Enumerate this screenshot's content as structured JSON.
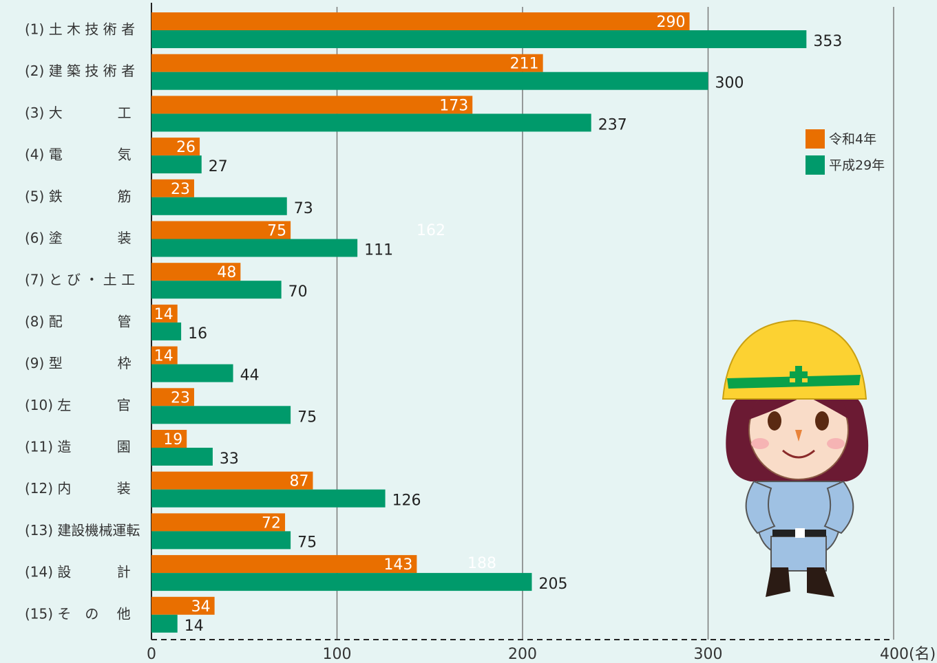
{
  "chart_data": {
    "type": "hbar",
    "categories": [
      "(1) 土 木 技 術 者",
      "(2) 建 築 技 術 者",
      "(3) 大　　　　工",
      "(4) 電　　　　気",
      "(5) 鉄　　　　筋",
      "(6) 塗　　　　装",
      "(7) と び ・ 土 工",
      "(8) 配　　　　管",
      "(9) 型　　　　枠",
      "(10) 左　　　 官",
      "(11) 造　　　 園",
      "(12) 内　　　 装",
      "(13) 建設機械運転",
      "(14) 設　　　 計",
      "(15) そ　の　 他"
    ],
    "series": [
      {
        "name": "令和4年",
        "color": "#e96f00",
        "values": [
          290,
          211,
          173,
          26,
          23,
          75,
          48,
          14,
          14,
          23,
          19,
          87,
          72,
          143,
          34
        ]
      },
      {
        "name": "平成29年",
        "color": "#009a6b",
        "values": [
          353,
          300,
          237,
          27,
          73,
          111,
          70,
          16,
          44,
          75,
          33,
          126,
          75,
          205,
          14
        ]
      }
    ],
    "xlim": [
      0,
      400
    ],
    "xticks": [
      0,
      100,
      200,
      300,
      {
        "value": 400,
        "label": "400(名)"
      }
    ],
    "grid": true,
    "legend": "right",
    "annotations": [
      "162",
      "188"
    ]
  }
}
